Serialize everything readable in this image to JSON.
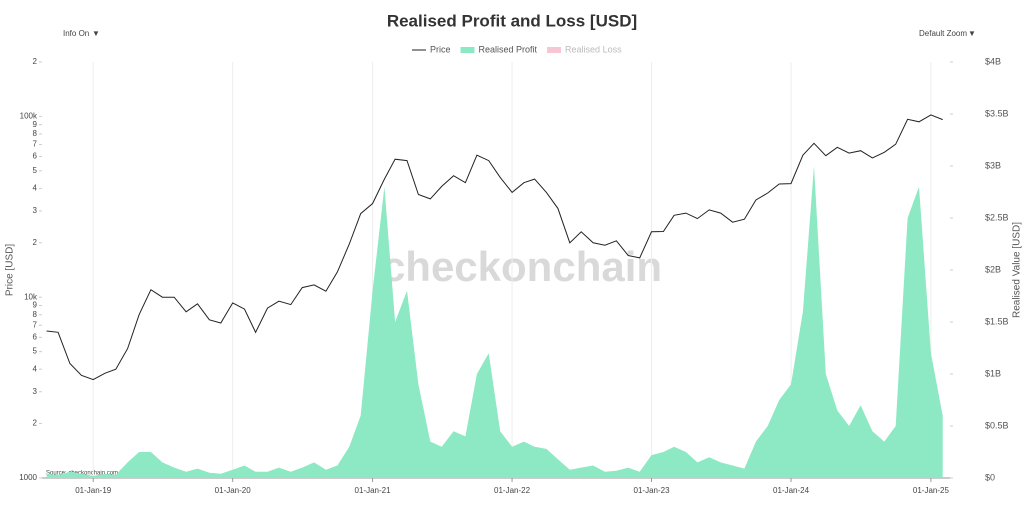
{
  "chart_data": {
    "type": "line",
    "title": "Realised Profit and Loss [USD]",
    "controls": {
      "info": "Info On",
      "zoom": "Default Zoom",
      "arrow": "▼"
    },
    "ylabel": "Price [USD]",
    "y2label": "Realised Value [USD]",
    "watermark": "checkonchain",
    "source": "Source: checkonchain.com   ResearchBitcoin.net",
    "log_y": true,
    "grid": true,
    "legend": "top",
    "hidden_series": [
      {
        "name": "Realised Loss",
        "color": "#f7c6d3"
      }
    ],
    "x": [
      "2018-09-01",
      "2018-10-01",
      "2018-11-01",
      "2018-12-01",
      "2019-01-01",
      "2019-02-01",
      "2019-03-01",
      "2019-04-01",
      "2019-05-01",
      "2019-06-01",
      "2019-07-01",
      "2019-08-01",
      "2019-09-01",
      "2019-10-01",
      "2019-11-01",
      "2019-12-01",
      "2020-01-01",
      "2020-02-01",
      "2020-03-01",
      "2020-04-01",
      "2020-05-01",
      "2020-06-01",
      "2020-07-01",
      "2020-08-01",
      "2020-09-01",
      "2020-10-01",
      "2020-11-01",
      "2020-12-01",
      "2021-01-01",
      "2021-02-01",
      "2021-03-01",
      "2021-04-01",
      "2021-05-01",
      "2021-06-01",
      "2021-07-01",
      "2021-08-01",
      "2021-09-01",
      "2021-10-01",
      "2021-11-01",
      "2021-12-01",
      "2022-01-01",
      "2022-02-01",
      "2022-03-01",
      "2022-04-01",
      "2022-05-01",
      "2022-06-01",
      "2022-07-01",
      "2022-08-01",
      "2022-09-01",
      "2022-10-01",
      "2022-11-01",
      "2022-12-01",
      "2023-01-01",
      "2023-02-01",
      "2023-03-01",
      "2023-04-01",
      "2023-05-01",
      "2023-06-01",
      "2023-07-01",
      "2023-08-01",
      "2023-09-01",
      "2023-10-01",
      "2023-11-01",
      "2023-12-01",
      "2024-01-01",
      "2024-02-01",
      "2024-03-01",
      "2024-04-01",
      "2024-05-01",
      "2024-06-01",
      "2024-07-01",
      "2024-08-01",
      "2024-09-01",
      "2024-10-01",
      "2024-11-01",
      "2024-12-01",
      "2025-01-01",
      "2025-02-01"
    ],
    "series": [
      {
        "name": "Price",
        "color": "#222222",
        "axis": "y",
        "values": [
          6500,
          6400,
          4300,
          3700,
          3500,
          3800,
          4000,
          5200,
          8000,
          11000,
          10000,
          10000,
          8300,
          9200,
          7500,
          7200,
          9300,
          8600,
          6400,
          8700,
          9500,
          9100,
          11300,
          11700,
          10800,
          13800,
          19700,
          29000,
          33000,
          45000,
          58000,
          57000,
          37000,
          35000,
          41000,
          47000,
          43000,
          61000,
          57000,
          46000,
          38000,
          43000,
          45000,
          38000,
          31000,
          20000,
          23000,
          20000,
          19400,
          20500,
          17000,
          16500,
          23000,
          23100,
          28400,
          29200,
          27200,
          30400,
          29200,
          26000,
          27000,
          34500,
          37700,
          42300,
          42500,
          61000,
          71000,
          60600,
          67500,
          62700,
          64600,
          59000,
          63300,
          70200,
          96400,
          93400,
          102000,
          96000
        ]
      },
      {
        "name": "Realised Profit",
        "color": "#8de8c4",
        "axis": "y2",
        "area": true,
        "values": [
          40000000,
          30000000,
          60000000,
          40000000,
          20000000,
          40000000,
          30000000,
          150000000,
          250000000,
          250000000,
          150000000,
          100000000,
          60000000,
          90000000,
          50000000,
          40000000,
          80000000,
          120000000,
          60000000,
          60000000,
          100000000,
          60000000,
          100000000,
          150000000,
          80000000,
          120000000,
          300000000,
          600000000,
          1800000000,
          2800000000,
          1500000000,
          1800000000,
          900000000,
          350000000,
          300000000,
          450000000,
          400000000,
          1000000000,
          1200000000,
          450000000,
          300000000,
          350000000,
          300000000,
          280000000,
          180000000,
          80000000,
          100000000,
          120000000,
          60000000,
          70000000,
          100000000,
          60000000,
          220000000,
          250000000,
          300000000,
          250000000,
          150000000,
          200000000,
          150000000,
          120000000,
          90000000,
          350000000,
          500000000,
          750000000,
          900000000,
          1600000000,
          3000000000,
          1000000000,
          650000000,
          500000000,
          700000000,
          450000000,
          350000000,
          500000000,
          2500000000,
          2800000000,
          1200000000,
          600000000
        ]
      }
    ],
    "xlim": [
      "2018-08-20",
      "2025-02-20"
    ],
    "xticks": [
      {
        "value": "2019-01-01",
        "label": "01-Jan-19"
      },
      {
        "value": "2020-01-01",
        "label": "01-Jan-20"
      },
      {
        "value": "2021-01-01",
        "label": "01-Jan-21"
      },
      {
        "value": "2022-01-01",
        "label": "01-Jan-22"
      },
      {
        "value": "2023-01-01",
        "label": "01-Jan-23"
      },
      {
        "value": "2024-01-01",
        "label": "01-Jan-24"
      },
      {
        "value": "2025-01-01",
        "label": "01-Jan-25"
      }
    ],
    "ylim": [
      1000,
      200000
    ],
    "yticks": [
      1000,
      {
        "value": 2000,
        "label": "2"
      },
      {
        "value": 3000,
        "label": "3"
      },
      {
        "value": 4000,
        "label": "4"
      },
      {
        "value": 5000,
        "label": "5"
      },
      {
        "value": 6000,
        "label": "6"
      },
      {
        "value": 7000,
        "label": "7"
      },
      {
        "value": 8000,
        "label": "8"
      },
      {
        "value": 9000,
        "label": "9"
      },
      {
        "value": 10000,
        "label": "10k"
      },
      {
        "value": 20000,
        "label": "2"
      },
      {
        "value": 30000,
        "label": "3"
      },
      {
        "value": 40000,
        "label": "4"
      },
      {
        "value": 50000,
        "label": "5"
      },
      {
        "value": 60000,
        "label": "6"
      },
      {
        "value": 70000,
        "label": "7"
      },
      {
        "value": 80000,
        "label": "8"
      },
      {
        "value": 90000,
        "label": "9"
      },
      {
        "value": 100000,
        "label": "100k"
      },
      {
        "value": 200000,
        "label": "2"
      }
    ],
    "y2lim": [
      0,
      4000000000
    ],
    "y2ticks": [
      {
        "value": 0,
        "label": "$0"
      },
      {
        "value": 500000000,
        "label": "$0.5B"
      },
      {
        "value": 1000000000,
        "label": "$1B"
      },
      {
        "value": 1500000000,
        "label": "$1.5B"
      },
      {
        "value": 2000000000,
        "label": "$2B"
      },
      {
        "value": 2500000000,
        "label": "$2.5B"
      },
      {
        "value": 3000000000,
        "label": "$3B"
      },
      {
        "value": 3500000000,
        "label": "$3.5B"
      },
      {
        "value": 4000000000,
        "label": "$4B"
      }
    ]
  }
}
